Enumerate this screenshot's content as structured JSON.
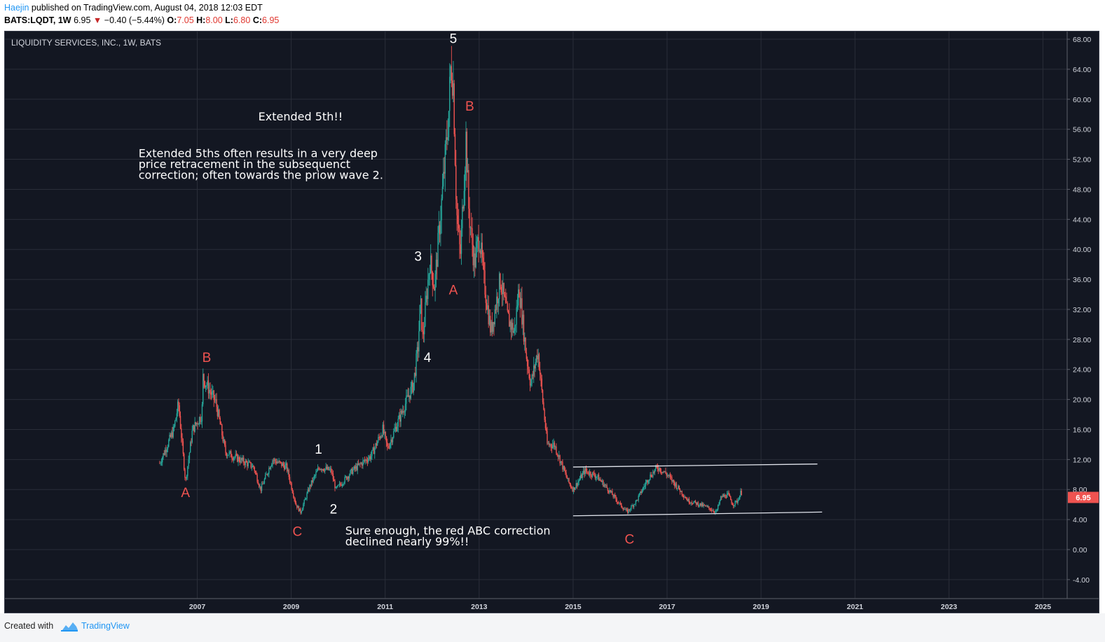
{
  "header": {
    "author": "Haejin",
    "published": "published on TradingView.com, August 04, 2018 12:03 EDT",
    "symbol": "BATS:LQDT, 1W",
    "last": "6.95",
    "change": "−0.40 (−5.44%)",
    "o_label": "O:",
    "o_value": "7.05",
    "h_label": "H:",
    "h_value": "8.00",
    "l_label": "L:",
    "l_value": "6.80",
    "c_label": "C:",
    "c_value": "6.95",
    "down_color": "#e0372f"
  },
  "footer": {
    "created_with": "Created with",
    "brand": "TradingView",
    "logo_icon": "tradingview-cloud-icon"
  },
  "colors": {
    "background": "#131722",
    "grid": "#2a2e39",
    "up": "#26a69a",
    "down": "#ef5350",
    "wave_white": "#ffffff",
    "wave_red": "#ef5350",
    "price_badge": "#ef5350"
  },
  "chart_data": {
    "type": "candlestick",
    "title": "LIQUIDITY SERVICES, INC., 1W, BATS",
    "timeframe": "1W",
    "x_ticks": [
      "2007",
      "2009",
      "2011",
      "2013",
      "2015",
      "2017",
      "2019",
      "2021",
      "2023",
      "2025"
    ],
    "y_ticks": [
      "68.00",
      "64.00",
      "60.00",
      "56.00",
      "52.00",
      "48.00",
      "44.00",
      "40.00",
      "36.00",
      "32.00",
      "28.00",
      "24.00",
      "20.00",
      "16.00",
      "12.00",
      "8.00",
      "4.00",
      "0.00",
      "-4.00"
    ],
    "ylim": [
      -5,
      70
    ],
    "xlim": [
      2006.0,
      2025.5
    ],
    "last_price": "6.95",
    "price_path": [
      [
        2006.2,
        11.5
      ],
      [
        2006.5,
        16
      ],
      [
        2006.6,
        19.5
      ],
      [
        2006.75,
        9
      ],
      [
        2006.9,
        16
      ],
      [
        2007.1,
        18
      ],
      [
        2007.12,
        23
      ],
      [
        2007.4,
        19.5
      ],
      [
        2007.6,
        13
      ],
      [
        2007.9,
        12
      ],
      [
        2008.2,
        11
      ],
      [
        2008.35,
        8
      ],
      [
        2008.6,
        12
      ],
      [
        2008.9,
        11
      ],
      [
        2009.1,
        6
      ],
      [
        2009.2,
        5
      ],
      [
        2009.4,
        8.5
      ],
      [
        2009.6,
        11
      ],
      [
        2009.85,
        10.5
      ],
      [
        2009.95,
        8
      ],
      [
        2010.3,
        10.5
      ],
      [
        2010.7,
        12.5
      ],
      [
        2010.95,
        16
      ],
      [
        2011.05,
        13.5
      ],
      [
        2011.4,
        19
      ],
      [
        2011.6,
        22
      ],
      [
        2011.7,
        27
      ],
      [
        2011.75,
        33
      ],
      [
        2011.8,
        28
      ],
      [
        2011.95,
        38.5
      ],
      [
        2012.05,
        35
      ],
      [
        2012.25,
        50
      ],
      [
        2012.35,
        58
      ],
      [
        2012.4,
        65
      ],
      [
        2012.45,
        62
      ],
      [
        2012.52,
        45
      ],
      [
        2012.6,
        39
      ],
      [
        2012.72,
        55
      ],
      [
        2012.78,
        45
      ],
      [
        2012.9,
        38
      ],
      [
        2013.0,
        42
      ],
      [
        2013.1,
        36
      ],
      [
        2013.25,
        29
      ],
      [
        2013.45,
        36
      ],
      [
        2013.6,
        31
      ],
      [
        2013.75,
        29
      ],
      [
        2013.85,
        35
      ],
      [
        2014.0,
        26
      ],
      [
        2014.1,
        22
      ],
      [
        2014.25,
        26.5
      ],
      [
        2014.35,
        20
      ],
      [
        2014.45,
        14
      ],
      [
        2014.6,
        14
      ],
      [
        2014.75,
        11.5
      ],
      [
        2014.9,
        9
      ],
      [
        2015.0,
        8
      ],
      [
        2015.25,
        10.5
      ],
      [
        2015.5,
        9.8
      ],
      [
        2015.75,
        8
      ],
      [
        2016.0,
        6
      ],
      [
        2016.15,
        5
      ],
      [
        2016.35,
        6.5
      ],
      [
        2016.6,
        9.5
      ],
      [
        2016.8,
        11
      ],
      [
        2017.0,
        10
      ],
      [
        2017.2,
        8.5
      ],
      [
        2017.45,
        6.5
      ],
      [
        2017.7,
        6
      ],
      [
        2017.9,
        5.5
      ],
      [
        2018.05,
        5
      ],
      [
        2018.15,
        7
      ],
      [
        2018.3,
        7.3
      ],
      [
        2018.4,
        6
      ],
      [
        2018.5,
        6.5
      ],
      [
        2018.58,
        7.8
      ],
      [
        2018.6,
        6.95
      ]
    ],
    "trendlines": [
      {
        "from": [
          2015.0,
          11.0
        ],
        "to": [
          2020.2,
          11.4
        ]
      },
      {
        "from": [
          2015.0,
          4.5
        ],
        "to": [
          2020.3,
          5.0
        ]
      }
    ],
    "annotations": [
      {
        "text": "5",
        "x": 2012.45,
        "y": 67.5,
        "color": "#ffffff"
      },
      {
        "text": "B",
        "x": 2012.8,
        "y": 58.5,
        "color": "#ef5350"
      },
      {
        "text": "3",
        "x": 2011.7,
        "y": 38.5,
        "color": "#ffffff"
      },
      {
        "text": "A",
        "x": 2012.45,
        "y": 34.0,
        "color": "#ef5350"
      },
      {
        "text": "4",
        "x": 2011.9,
        "y": 25.0,
        "color": "#ffffff"
      },
      {
        "text": "B",
        "x": 2007.2,
        "y": 25.0,
        "color": "#ef5350"
      },
      {
        "text": "1",
        "x": 2009.58,
        "y": 12.8,
        "color": "#ffffff"
      },
      {
        "text": "A",
        "x": 2006.75,
        "y": 7.0,
        "color": "#ef5350"
      },
      {
        "text": "2",
        "x": 2009.9,
        "y": 4.8,
        "color": "#ffffff"
      },
      {
        "text": "C",
        "x": 2009.13,
        "y": 1.8,
        "color": "#ef5350"
      },
      {
        "text": "C",
        "x": 2016.2,
        "y": 0.8,
        "color": "#ef5350"
      }
    ],
    "notes": [
      {
        "lines": [
          "Extended 5th!!"
        ],
        "x": 2008.3,
        "y": 57.2
      },
      {
        "lines": [
          "Extended 5ths often results in a very deep",
          "price retracement in the subsequenct",
          "correction; often towards the priow wave 2."
        ],
        "x": 2005.75,
        "y": 52.3
      },
      {
        "lines": [
          "Sure enough, the red ABC correction",
          "declined nearly 99%!!"
        ],
        "x": 2010.15,
        "y": 2.0
      }
    ]
  }
}
